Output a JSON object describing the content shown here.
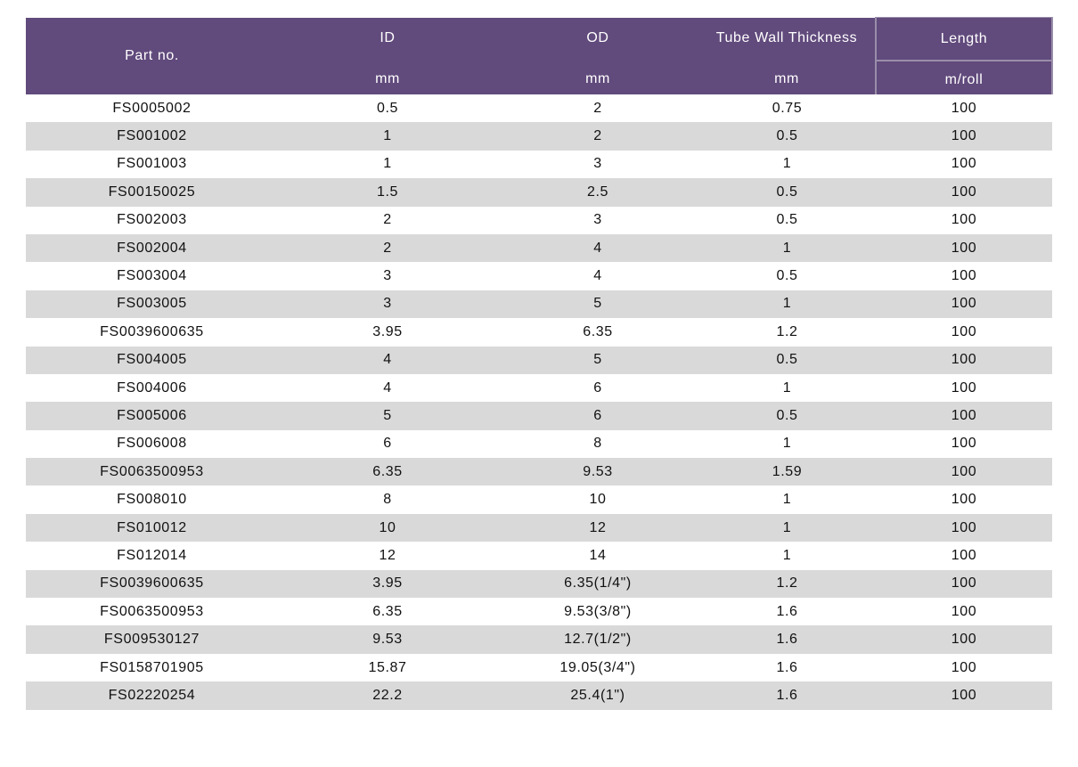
{
  "table": {
    "headers": {
      "part_no": "Part no.",
      "id": "ID",
      "od": "OD",
      "wall": "Tube Wall Thickness",
      "length": "Length",
      "id_unit": "mm",
      "od_unit": "mm",
      "wall_unit": "mm",
      "length_unit": "m/roll"
    },
    "rows": [
      {
        "part": "FS0005002",
        "id": "0.5",
        "od": "2",
        "wall": "0.75",
        "length": "100"
      },
      {
        "part": "FS001002",
        "id": "1",
        "od": "2",
        "wall": "0.5",
        "length": "100"
      },
      {
        "part": "FS001003",
        "id": "1",
        "od": "3",
        "wall": "1",
        "length": "100"
      },
      {
        "part": "FS00150025",
        "id": "1.5",
        "od": "2.5",
        "wall": "0.5",
        "length": "100"
      },
      {
        "part": "FS002003",
        "id": "2",
        "od": "3",
        "wall": "0.5",
        "length": "100"
      },
      {
        "part": "FS002004",
        "id": "2",
        "od": "4",
        "wall": "1",
        "length": "100"
      },
      {
        "part": "FS003004",
        "id": "3",
        "od": "4",
        "wall": "0.5",
        "length": "100"
      },
      {
        "part": "FS003005",
        "id": "3",
        "od": "5",
        "wall": "1",
        "length": "100"
      },
      {
        "part": "FS0039600635",
        "id": "3.95",
        "od": "6.35",
        "wall": "1.2",
        "length": "100"
      },
      {
        "part": "FS004005",
        "id": "4",
        "od": "5",
        "wall": "0.5",
        "length": "100"
      },
      {
        "part": "FS004006",
        "id": "4",
        "od": "6",
        "wall": "1",
        "length": "100"
      },
      {
        "part": "FS005006",
        "id": "5",
        "od": "6",
        "wall": "0.5",
        "length": "100"
      },
      {
        "part": "FS006008",
        "id": "6",
        "od": "8",
        "wall": "1",
        "length": "100"
      },
      {
        "part": "FS0063500953",
        "id": "6.35",
        "od": "9.53",
        "wall": "1.59",
        "length": "100"
      },
      {
        "part": "FS008010",
        "id": "8",
        "od": "10",
        "wall": "1",
        "length": "100"
      },
      {
        "part": "FS010012",
        "id": "10",
        "od": "12",
        "wall": "1",
        "length": "100"
      },
      {
        "part": "FS012014",
        "id": "12",
        "od": "14",
        "wall": "1",
        "length": "100"
      },
      {
        "part": "FS0039600635",
        "id": "3.95",
        "od": "6.35(1/4\")",
        "wall": "1.2",
        "length": "100"
      },
      {
        "part": "FS0063500953",
        "id": "6.35",
        "od": "9.53(3/8\")",
        "wall": "1.6",
        "length": "100"
      },
      {
        "part": "FS009530127",
        "id": "9.53",
        "od": "12.7(1/2\")",
        "wall": "1.6",
        "length": "100"
      },
      {
        "part": "FS0158701905",
        "id": "15.87",
        "od": "19.05(3/4\")",
        "wall": "1.6",
        "length": "100"
      },
      {
        "part": "FS02220254",
        "id": "22.2",
        "od": "25.4(1\")",
        "wall": "1.6",
        "length": "100"
      }
    ]
  }
}
